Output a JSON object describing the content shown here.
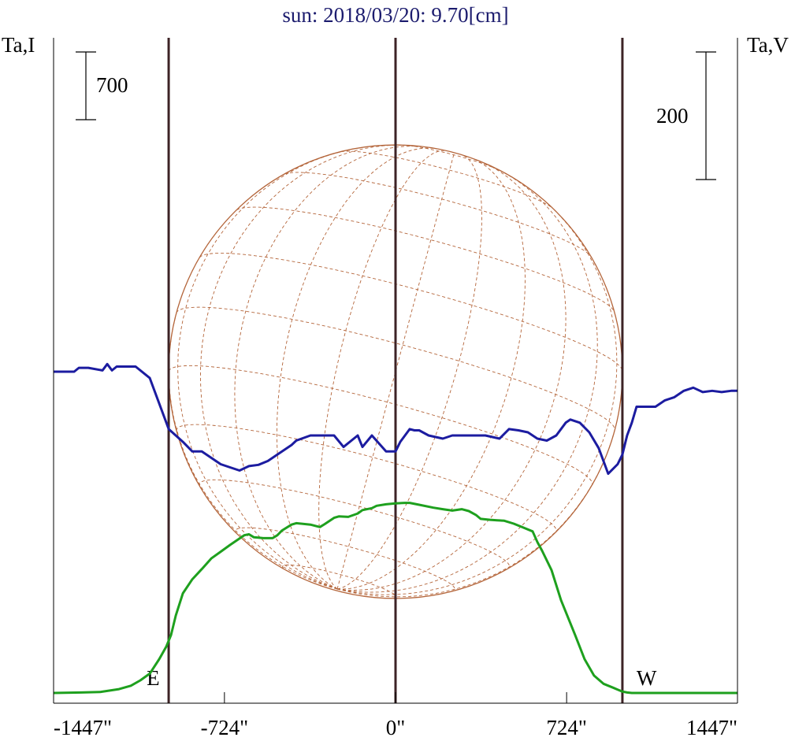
{
  "chart_data": {
    "type": "line",
    "title": "sun: 2018/03/20: 9.70[cm]",
    "left_axis_label": "Ta,I",
    "right_axis_label": "Ta,V",
    "left_scale_bar": {
      "label": "700",
      "value": 700
    },
    "right_scale_bar": {
      "label": "200",
      "value": 200
    },
    "xlim": [
      -1447,
      1447
    ],
    "x_ticks": [
      {
        "value": -1447,
        "label": "-1447\""
      },
      {
        "value": -724,
        "label": "-724\""
      },
      {
        "value": 0,
        "label": "0\""
      },
      {
        "value": 724,
        "label": "724\""
      },
      {
        "value": 1447,
        "label": "1447\""
      }
    ],
    "limb_markers": [
      {
        "value": -960,
        "label": "E"
      },
      {
        "value": 0,
        "label": ""
      },
      {
        "value": 960,
        "label": "W"
      }
    ],
    "solar_disk_radius": 960,
    "series": [
      {
        "color": "#1ea01e",
        "x": [
          -1447,
          -1330,
          -1250,
          -1170,
          -1120,
          -1080,
          -1040,
          -1000,
          -970,
          -950,
          -930,
          -900,
          -860,
          -820,
          -780,
          -740,
          -700,
          -640,
          -620,
          -600,
          -580,
          -560,
          -520,
          -500,
          -480,
          -440,
          -420,
          -360,
          -320,
          -300,
          -260,
          -240,
          -200,
          -160,
          -140,
          -100,
          -80,
          -40,
          0,
          40,
          60,
          100,
          160,
          200,
          240,
          280,
          310,
          340,
          360,
          400,
          430,
          460,
          500,
          540,
          580,
          600,
          620,
          660,
          700,
          760,
          800,
          840,
          880,
          920,
          940,
          960,
          980,
          1000,
          1020,
          1040,
          1080,
          1120,
          1160,
          1200,
          1260,
          1300,
          1340,
          1400,
          1447
        ],
        "y": [
          0,
          5,
          10,
          40,
          75,
          130,
          200,
          350,
          480,
          600,
          800,
          1030,
          1175,
          1280,
          1390,
          1460,
          1530,
          1630,
          1640,
          1610,
          1605,
          1600,
          1600,
          1630,
          1680,
          1740,
          1755,
          1740,
          1715,
          1745,
          1810,
          1825,
          1820,
          1855,
          1890,
          1910,
          1935,
          1950,
          1960,
          1965,
          1965,
          1945,
          1915,
          1900,
          1885,
          1900,
          1880,
          1840,
          1800,
          1790,
          1785,
          1780,
          1750,
          1710,
          1670,
          1560,
          1470,
          1270,
          960,
          600,
          350,
          180,
          95,
          55,
          35,
          15,
          5,
          0,
          0,
          0,
          0,
          0,
          0,
          0,
          0,
          0,
          0,
          0,
          0
        ]
      },
      {
        "color": "#1c1ca0",
        "x": [
          -1447,
          -1360,
          -1340,
          -1300,
          -1240,
          -1220,
          -1200,
          -1180,
          -1100,
          -1040,
          -1000,
          -960,
          -900,
          -860,
          -820,
          -780,
          -740,
          -700,
          -660,
          -620,
          -580,
          -540,
          -500,
          -440,
          -420,
          -360,
          -320,
          -260,
          -220,
          -160,
          -140,
          -100,
          -40,
          0,
          20,
          60,
          80,
          100,
          140,
          200,
          240,
          300,
          340,
          380,
          440,
          480,
          520,
          560,
          600,
          640,
          680,
          720,
          740,
          780,
          820,
          860,
          880,
          900,
          940,
          960,
          980,
          1000,
          1020,
          1060,
          1100,
          1140,
          1180,
          1220,
          1260,
          1300,
          1340,
          1380,
          1420,
          1447
        ],
        "y": [
          0,
          0,
          6,
          6,
          2,
          12,
          2,
          8,
          8,
          -10,
          -50,
          -90,
          -110,
          -125,
          -125,
          -135,
          -145,
          -150,
          -155,
          -148,
          -146,
          -140,
          -130,
          -115,
          -108,
          -100,
          -100,
          -100,
          -118,
          -100,
          -118,
          -100,
          -125,
          -125,
          -110,
          -90,
          -92,
          -92,
          -100,
          -105,
          -100,
          -100,
          -100,
          -100,
          -105,
          -90,
          -92,
          -95,
          -105,
          -108,
          -100,
          -80,
          -75,
          -80,
          -95,
          -120,
          -140,
          -160,
          -145,
          -130,
          -100,
          -80,
          -55,
          -55,
          -55,
          -45,
          -40,
          -30,
          -25,
          -32,
          -30,
          -32,
          -30,
          -30
        ]
      }
    ]
  }
}
